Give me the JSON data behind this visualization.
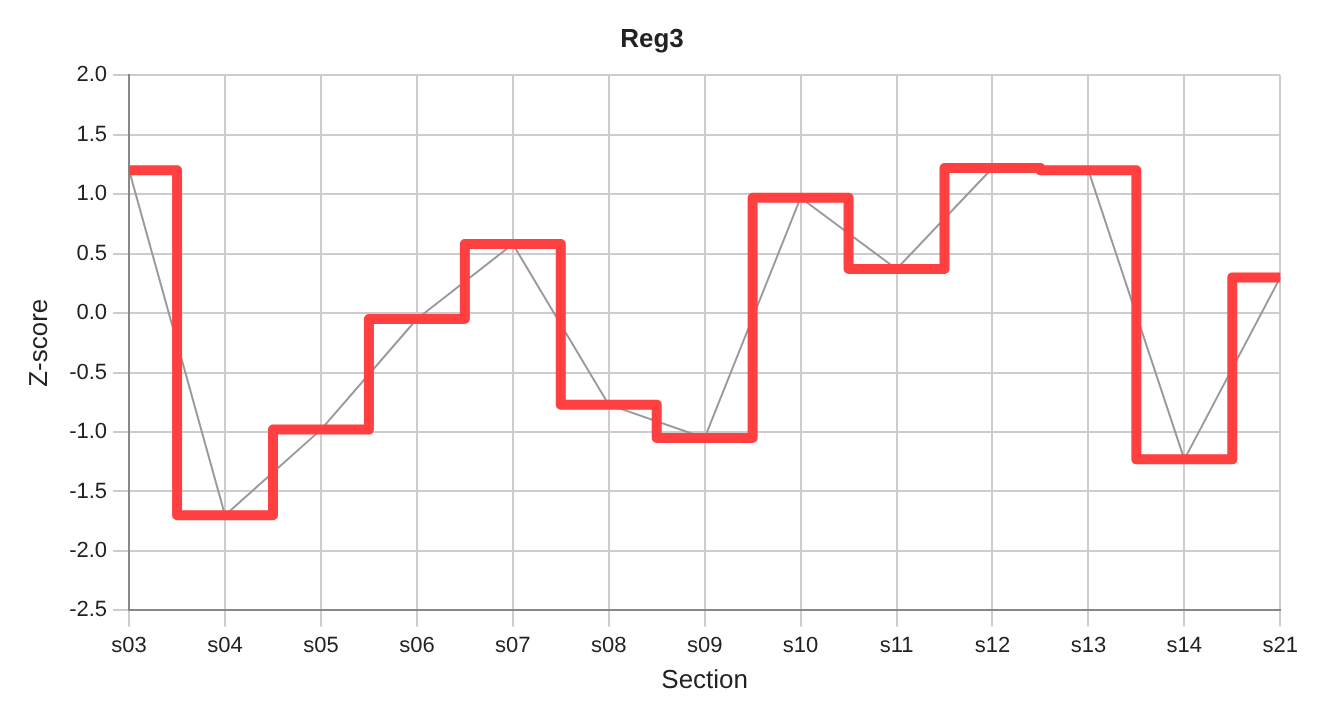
{
  "chart_data": {
    "type": "step",
    "title": "Reg3",
    "xlabel": "Section",
    "ylabel": "Z-score",
    "categories": [
      "s03",
      "s04",
      "s05",
      "s06",
      "s07",
      "s08",
      "s09",
      "s10",
      "s11",
      "s12",
      "s13",
      "s14",
      "s21"
    ],
    "series": [
      {
        "type": "line",
        "color": "#999999",
        "values": [
          1.2,
          -1.7,
          -0.98,
          -0.05,
          0.58,
          -0.77,
          -1.05,
          0.97,
          0.37,
          1.22,
          1.2,
          -1.23,
          0.3
        ]
      },
      {
        "color": "#ff4040",
        "values": [
          1.2,
          -1.7,
          -0.98,
          -0.05,
          0.58,
          -0.77,
          -1.05,
          0.97,
          0.37,
          1.22,
          1.2,
          -1.23,
          0.3
        ]
      }
    ],
    "ylim": [
      -2.5,
      2.0
    ],
    "yticks": [
      -2.5,
      {
        "value": -2,
        "label": "-2.0"
      },
      -1.5,
      {
        "value": -1,
        "label": "-1.0"
      },
      -0.5,
      {
        "value": 0,
        "label": "0.0"
      },
      0.5,
      {
        "value": 1,
        "label": "1.0"
      },
      1.5,
      {
        "value": 2,
        "label": "2.0"
      }
    ],
    "grid": true,
    "legend": false,
    "marker": "none"
  }
}
